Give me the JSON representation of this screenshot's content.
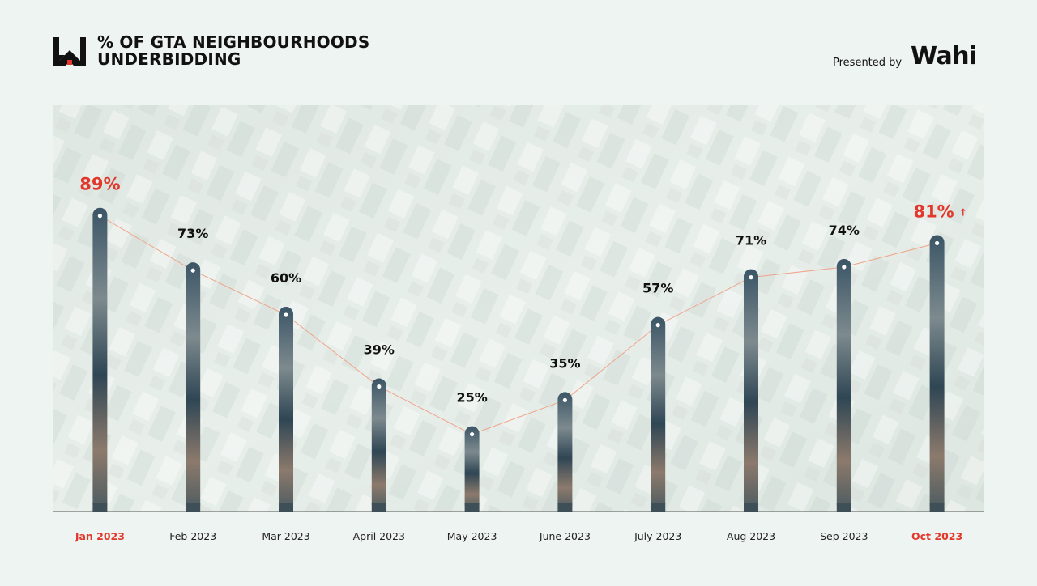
{
  "header": {
    "title_line1": "% OF GTA NEIGHBOURHOODS",
    "title_line2": "UNDERBIDDING",
    "presented_by": "Presented by",
    "brand": "Wahi"
  },
  "colors": {
    "highlight": "#e2382b",
    "text": "#111111",
    "line": "#f0a48a",
    "bar": "#2f4a5a"
  },
  "chart_data": {
    "type": "bar",
    "title": "% OF GTA NEIGHBOURHOODS UNDERBIDDING",
    "xlabel": "",
    "ylabel": "",
    "ylim": [
      0,
      100
    ],
    "categories": [
      "Jan 2023",
      "Feb 2023",
      "Mar 2023",
      "April 2023",
      "May 2023",
      "June 2023",
      "July 2023",
      "Aug 2023",
      "Sep 2023",
      "Oct 2023"
    ],
    "values": [
      89,
      73,
      60,
      39,
      25,
      35,
      57,
      71,
      74,
      81
    ],
    "value_labels": [
      "89%",
      "73%",
      "60%",
      "39%",
      "25%",
      "35%",
      "57%",
      "71%",
      "74%",
      "81%"
    ],
    "highlighted": [
      0,
      9
    ],
    "trend_line": true,
    "grid": false
  }
}
